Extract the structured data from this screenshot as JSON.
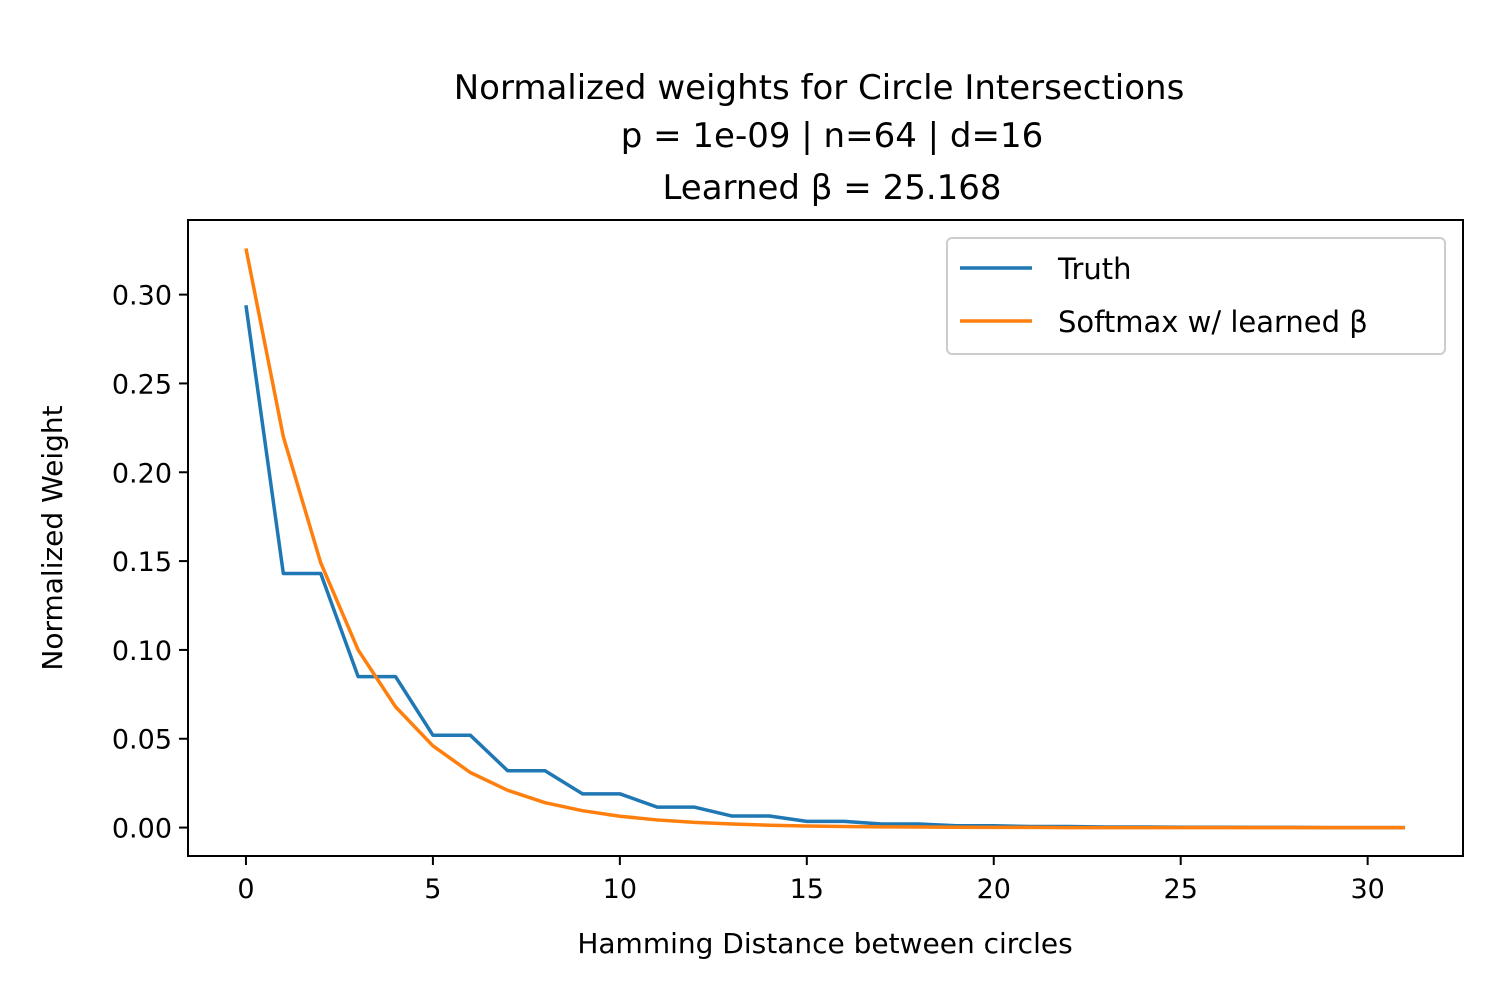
{
  "chart_data": {
    "type": "line",
    "title_lines": [
      "Normalized weights for Circle Intersections",
      "p = 1e-09 | n=64 | d=16",
      "Learned β = 25.168"
    ],
    "xlabel": "Hamming Distance between circles",
    "ylabel": "Normalized Weight",
    "xlim": [
      -1.55,
      32.55
    ],
    "ylim": [
      -0.016,
      0.342
    ],
    "xticks": [
      0,
      5,
      10,
      15,
      20,
      25,
      30
    ],
    "xtick_labels": [
      "0",
      "5",
      "10",
      "15",
      "20",
      "25",
      "30"
    ],
    "yticks": [
      0.0,
      0.05,
      0.1,
      0.15,
      0.2,
      0.25,
      0.3
    ],
    "ytick_labels": [
      "0.00",
      "0.05",
      "0.10",
      "0.15",
      "0.20",
      "0.25",
      "0.30"
    ],
    "grid": false,
    "legend_position": "top-right",
    "x": [
      0,
      1,
      2,
      3,
      4,
      5,
      6,
      7,
      8,
      9,
      10,
      11,
      12,
      13,
      14,
      15,
      16,
      17,
      18,
      19,
      20,
      21,
      22,
      23,
      24,
      25,
      26,
      27,
      28,
      29,
      30,
      31
    ],
    "series": [
      {
        "name": "Truth",
        "color": "#1f77b4",
        "values": [
          0.294,
          0.143,
          0.143,
          0.085,
          0.085,
          0.052,
          0.052,
          0.032,
          0.032,
          0.019,
          0.019,
          0.0115,
          0.0115,
          0.0065,
          0.0065,
          0.0035,
          0.0035,
          0.002,
          0.002,
          0.001,
          0.001,
          0.0006,
          0.0006,
          0.0003,
          0.0003,
          0.0002,
          0.0002,
          0.0001,
          0.0001,
          0.0,
          0.0,
          0.0
        ]
      },
      {
        "name": "Softmax w/ learned β",
        "color": "#ff7f0e",
        "values": [
          0.326,
          0.22,
          0.149,
          0.1,
          0.068,
          0.046,
          0.031,
          0.021,
          0.014,
          0.0095,
          0.0064,
          0.0043,
          0.0029,
          0.002,
          0.0013,
          0.0009,
          0.0006,
          0.0004,
          0.0003,
          0.0002,
          0.0001,
          0.0001,
          0.0,
          0.0,
          0.0,
          0.0,
          0.0,
          0.0,
          0.0,
          0.0,
          0.0,
          0.0
        ]
      }
    ]
  }
}
